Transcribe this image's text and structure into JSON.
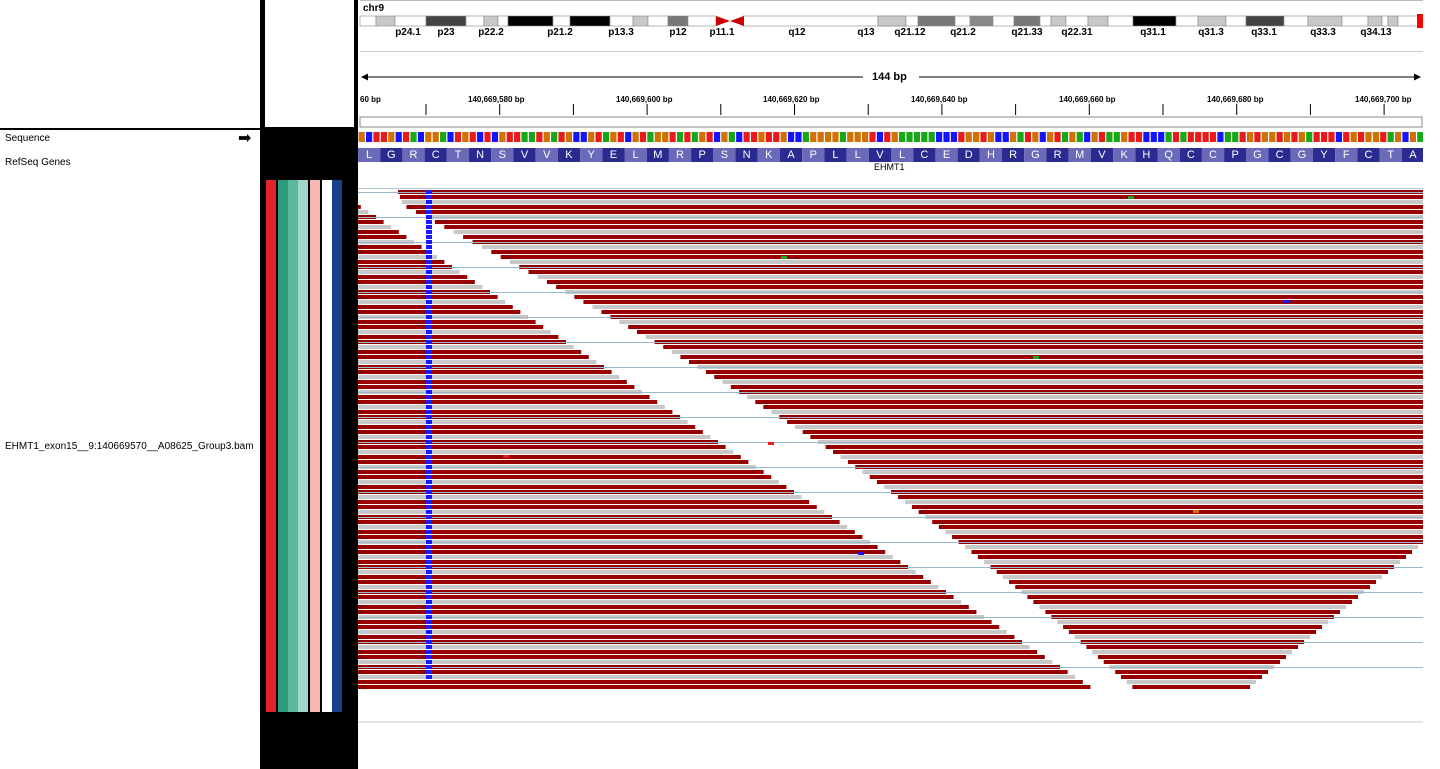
{
  "name_panel": {
    "tracks": [
      {
        "label": "Sequence"
      },
      {
        "label": "RefSeq Genes"
      },
      {
        "label": "EHMT1_exon15__9:140669570__A08625_Group3.bam"
      }
    ],
    "strand_arrow": "right-arrow-icon"
  },
  "ideogram": {
    "chromosome": "chr9",
    "bands": [
      "p24.1",
      "p23",
      "p22.2",
      "p21.2",
      "p13.3",
      "p12",
      "p11.1",
      "q12",
      "q13",
      "q21.12",
      "q21.2",
      "q21.33",
      "q22.31",
      "q31.1",
      "q31.3",
      "q33.1",
      "q33.3",
      "q34.13"
    ]
  },
  "ruler": {
    "span_label": "144 bp",
    "ticks": [
      "60 bp",
      "140,669,580 bp",
      "140,669,600 bp",
      "140,669,620 bp",
      "140,669,640 bp",
      "140,669,660 bp",
      "140,669,680 bp",
      "140,669,700 bp"
    ]
  },
  "sequence": {
    "amino_acids": [
      "L",
      "G",
      "R",
      "C",
      "T",
      "N",
      "S",
      "V",
      "V",
      "K",
      "Y",
      "E",
      "L",
      "M",
      "R",
      "P",
      "S",
      "N",
      "K",
      "A",
      "P",
      "L",
      "L",
      "V",
      "L",
      "C",
      "E",
      "D",
      "H",
      "R",
      "G",
      "R",
      "M",
      "V",
      "K",
      "H",
      "Q",
      "C",
      "C",
      "P",
      "G",
      "C",
      "G",
      "Y",
      "F",
      "C",
      "T",
      "A"
    ]
  },
  "refseq": {
    "gene_name": "EHMT1"
  },
  "attributes": {
    "colors": [
      "#e0242a",
      "#2e9c7c",
      "#5ab89e",
      "#9fd8c8",
      "#f7b7b0",
      "#ffffff",
      "#1a3f8a"
    ]
  },
  "colors": {
    "read_fill": "#960000",
    "read_soft": "#c8c8c8",
    "insert_mark": "#1a1aff",
    "nuc_A": "#17a817",
    "nuc_C": "#1414ff",
    "nuc_G": "#d17104",
    "nuc_T": "#ea1a1a"
  }
}
